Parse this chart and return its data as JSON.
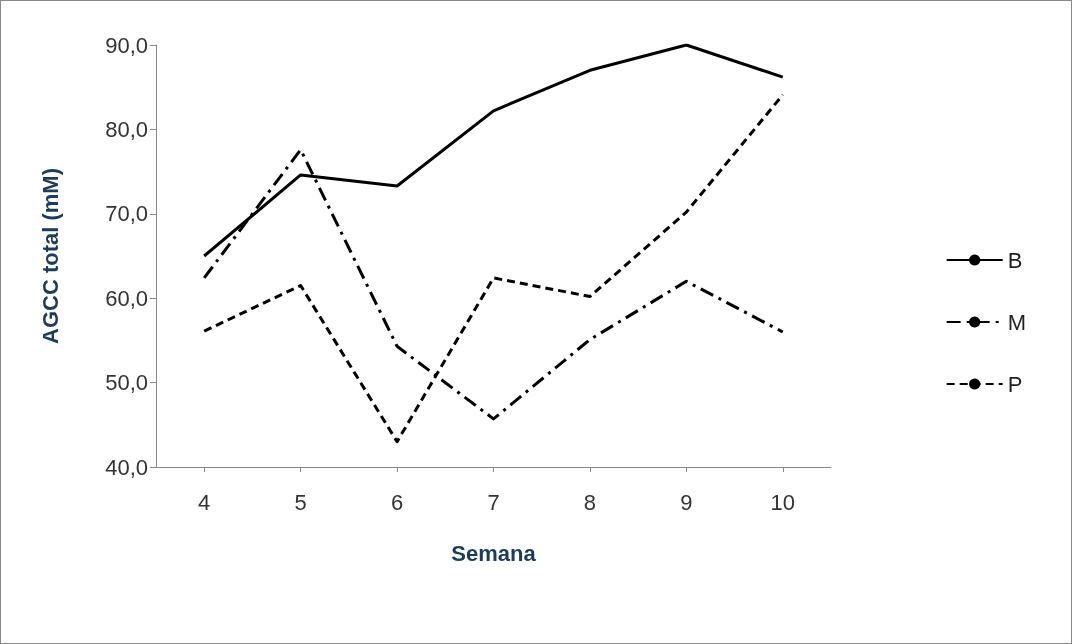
{
  "chart_data": {
    "type": "line",
    "xlabel": "Semana",
    "ylabel": "AGCC total (mM)",
    "categories": [
      "4",
      "5",
      "6",
      "7",
      "8",
      "9",
      "10"
    ],
    "series": [
      {
        "name": "B",
        "color": "#000000",
        "line_style": "solid",
        "values": [
          65.0,
          74.6,
          73.3,
          82.2,
          87.0,
          90.0,
          86.2
        ]
      },
      {
        "name": "M",
        "color": "#000000",
        "line_style": "dashdot",
        "values": [
          62.4,
          77.6,
          54.3,
          45.7,
          55.1,
          62.0,
          56.0
        ]
      },
      {
        "name": "P",
        "color": "#000000",
        "line_style": "dashed",
        "values": [
          56.1,
          61.5,
          43.0,
          62.4,
          60.2,
          70.2,
          84.1
        ]
      }
    ],
    "ylim": [
      40,
      90
    ],
    "yticks": [
      {
        "value": 40,
        "label": "40,0"
      },
      {
        "value": 50,
        "label": "50,0"
      },
      {
        "value": 60,
        "label": "60,0"
      },
      {
        "value": 70,
        "label": "70,0"
      },
      {
        "value": 80,
        "label": "80,0"
      },
      {
        "value": 90,
        "label": "90,0"
      }
    ],
    "grid": false,
    "legend": "right",
    "marker": "none"
  }
}
